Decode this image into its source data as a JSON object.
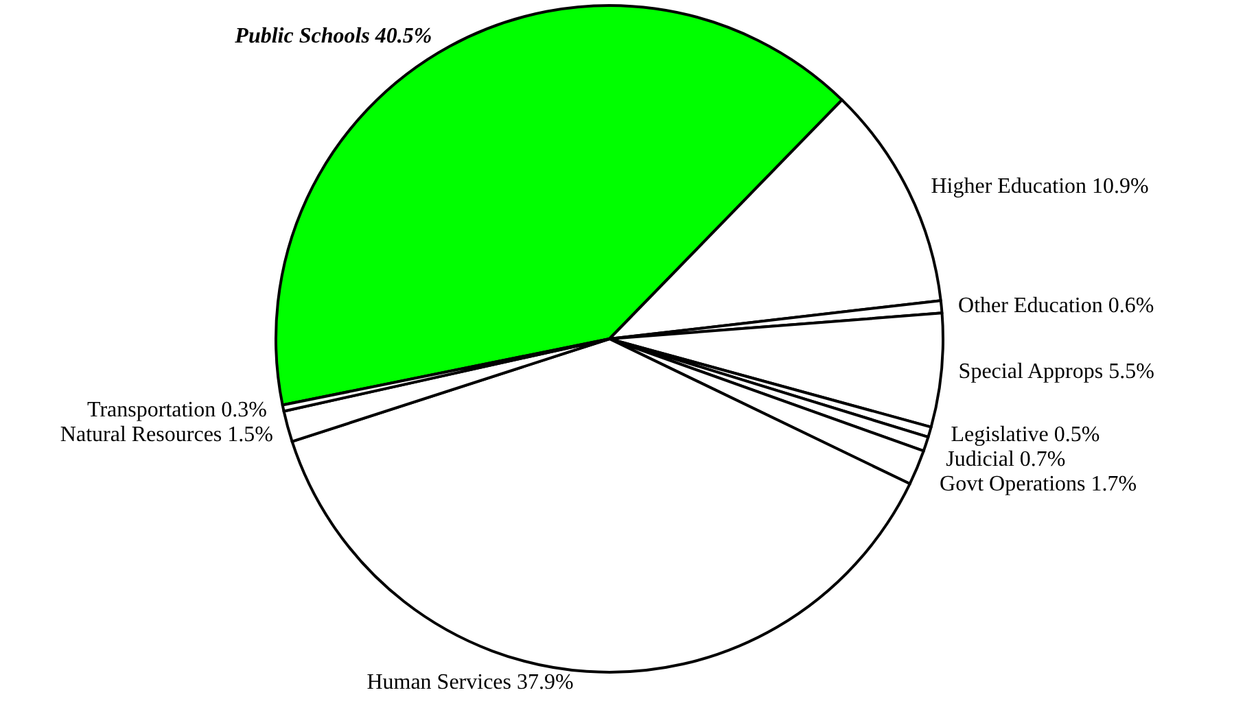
{
  "chart_data": {
    "type": "pie",
    "categories": [
      "Public Schools",
      "Higher Education",
      "Other Education",
      "Special Approps",
      "Legislative",
      "Judicial",
      "Govt Operations",
      "Human Services",
      "Natural Resources",
      "Transportation"
    ],
    "values": [
      40.5,
      10.9,
      0.6,
      5.5,
      0.5,
      0.7,
      1.7,
      37.9,
      1.5,
      0.3
    ],
    "value_labels": [
      "40.5%",
      "10.9%",
      "0.6%",
      "5.5%",
      "0.5%",
      "0.7%",
      "1.7%",
      "37.9%",
      "1.5%",
      "0.3%"
    ],
    "colors": [
      "#00ff00",
      "#ffffff",
      "#ffffff",
      "#ffffff",
      "#ffffff",
      "#ffffff",
      "#ffffff",
      "#ffffff",
      "#ffffff",
      "#ffffff"
    ],
    "legend": false
  }
}
